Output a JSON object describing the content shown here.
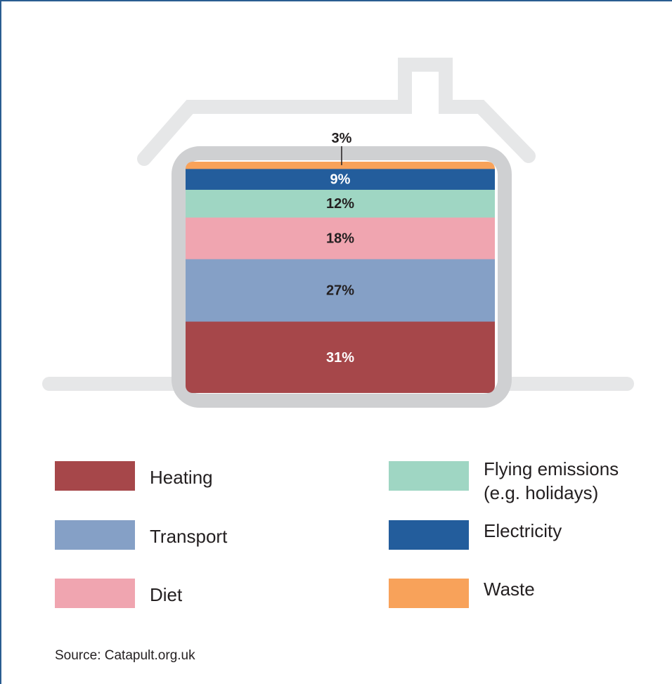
{
  "chart_data": {
    "type": "stacked-bar",
    "unit": "%",
    "segments": [
      {
        "name": "Heating",
        "value": 31,
        "label": "31%",
        "color": "#a6474a"
      },
      {
        "name": "Transport",
        "value": 27,
        "label": "27%",
        "color": "#85a0c6"
      },
      {
        "name": "Diet",
        "value": 18,
        "label": "18%",
        "color": "#f0a5b0"
      },
      {
        "name": "Flying emissions (e.g. holidays)",
        "value": 12,
        "label": "12%",
        "color": "#9fd6c3"
      },
      {
        "name": "Electricity",
        "value": 9,
        "label": "9%",
        "color": "#235d9c"
      },
      {
        "name": "Waste",
        "value": 3,
        "label": "3%",
        "color": "#f8a25a"
      }
    ]
  },
  "legend": [
    {
      "line1": "Heating",
      "line2": "",
      "color": "#a6474a"
    },
    {
      "line1": "Transport",
      "line2": "",
      "color": "#85a0c6"
    },
    {
      "line1": "Diet",
      "line2": "",
      "color": "#f0a5b0"
    },
    {
      "line1": "Flying emissions",
      "line2": "(e.g. holidays)",
      "color": "#9fd6c3"
    },
    {
      "line1": "Electricity",
      "line2": "",
      "color": "#235d9c"
    },
    {
      "line1": "Waste",
      "line2": "",
      "color": "#f8a25a"
    }
  ],
  "source": "Source: Catapult.org.uk"
}
